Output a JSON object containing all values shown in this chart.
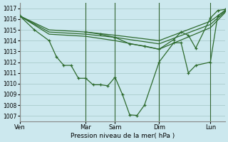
{
  "background_color": "#cce8ee",
  "grid_color": "#aacccc",
  "line_color": "#2d6a2d",
  "title": "Pression niveau de la mer( hPa )",
  "ylim": [
    1006.5,
    1017.5
  ],
  "yticks": [
    1007,
    1008,
    1009,
    1010,
    1011,
    1012,
    1013,
    1014,
    1015,
    1016,
    1017
  ],
  "day_labels": [
    "Ven",
    "Mar",
    "Sam",
    "Dim",
    "Lun"
  ],
  "day_x": [
    0,
    9,
    13,
    19,
    26
  ],
  "xlim": [
    0,
    28
  ],
  "line1_nomarker": {
    "x": [
      0,
      4,
      9,
      13,
      19,
      26,
      28
    ],
    "y": [
      1016.3,
      1015.0,
      1014.8,
      1014.5,
      1014.0,
      1015.8,
      1016.8
    ]
  },
  "line2_nomarker": {
    "x": [
      0,
      4,
      9,
      13,
      19,
      26,
      28
    ],
    "y": [
      1016.3,
      1014.8,
      1014.6,
      1014.3,
      1013.7,
      1015.5,
      1016.7
    ]
  },
  "line3_nomarker": {
    "x": [
      0,
      4,
      9,
      13,
      19,
      26,
      28
    ],
    "y": [
      1016.3,
      1014.6,
      1014.4,
      1014.0,
      1013.2,
      1015.2,
      1016.6
    ]
  },
  "line_main": {
    "x": [
      0,
      2,
      4,
      5,
      6,
      7,
      8,
      9,
      10,
      11,
      12,
      13,
      14,
      15,
      16,
      17,
      19,
      21,
      22,
      23,
      24,
      26,
      27,
      28
    ],
    "y": [
      1016.3,
      1015.0,
      1014.0,
      1012.5,
      1011.7,
      1011.7,
      1010.5,
      1010.5,
      1009.9,
      1009.9,
      1009.8,
      1010.6,
      1009.0,
      1007.1,
      1007.05,
      1008.0,
      1012.0,
      1013.8,
      1013.8,
      1011.0,
      1011.7,
      1012.0,
      1016.3,
      1016.8
    ]
  },
  "line_right": {
    "x": [
      9,
      11,
      13,
      15,
      17,
      19,
      21,
      22,
      23,
      24,
      26,
      27,
      28
    ],
    "y": [
      1014.8,
      1014.6,
      1014.3,
      1013.7,
      1013.5,
      1013.2,
      1014.1,
      1014.8,
      1014.5,
      1013.3,
      1016.1,
      1016.8,
      1016.9
    ]
  }
}
